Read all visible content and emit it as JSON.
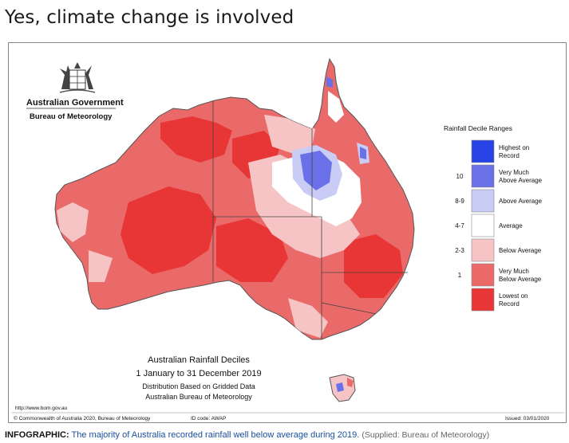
{
  "headline": "Yes, climate change is involved",
  "logo": {
    "org": "Australian Government",
    "bureau": "Bureau of Meteorology"
  },
  "legend": {
    "title": "Rainfall Decile Ranges",
    "items": [
      {
        "range": "",
        "label1": "Highest on",
        "label2": "Record",
        "color": "#2743e6"
      },
      {
        "range": "10",
        "label1": "Very Much",
        "label2": "Above Average",
        "color": "#6a70e8"
      },
      {
        "range": "8-9",
        "label1": "Above Average",
        "label2": "",
        "color": "#c9ccf4"
      },
      {
        "range": "4-7",
        "label1": "Average",
        "label2": "",
        "color": "#ffffff"
      },
      {
        "range": "2-3",
        "label1": "Below Average",
        "label2": "",
        "color": "#f6c4c4"
      },
      {
        "range": "1",
        "label1": "Very Much",
        "label2": "Below Average",
        "color": "#ea6a6a"
      },
      {
        "range": "",
        "label1": "Lowest on",
        "label2": "Record",
        "color": "#e83535"
      }
    ]
  },
  "map_title": {
    "line1": "Australian Rainfall Deciles",
    "line2": "1 January to 31 December 2019",
    "line3": "Distribution Based on Gridded Data",
    "line4": "Australian Bureau of Meteorology"
  },
  "footer": {
    "url": "http://www.bom.gov.au",
    "copyright": "© Commonwealth of Australia 2020, Bureau of Meteorology",
    "id_code": "ID code: AWAP",
    "issued": "Issued: 03/01/2020"
  },
  "caption": {
    "prefix": "INFOGRAPHIC:",
    "text": "The majority of Australia recorded rainfall well below average during 2019.",
    "source": "(Supplied: Bureau of Meteorology)"
  }
}
